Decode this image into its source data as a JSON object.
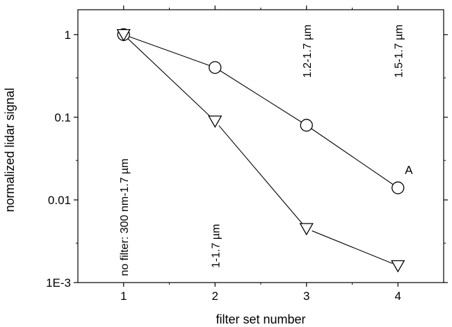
{
  "chart_data": {
    "type": "line",
    "xlabel": "filter set number",
    "ylabel": "normalized lidar signal",
    "yscale": "log",
    "xlim": [
      0.5,
      4.5
    ],
    "ylim": [
      0.001,
      2
    ],
    "x_ticks": [
      1,
      2,
      3,
      4
    ],
    "x_tick_labels": [
      "1",
      "2",
      "3",
      "4"
    ],
    "y_ticks": [
      1,
      0.1,
      0.01,
      0.001
    ],
    "y_tick_labels": [
      "1",
      "0.1",
      "0.01",
      "1E-3"
    ],
    "grid": false,
    "series": [
      {
        "marker": "circle",
        "color": "#000000",
        "x": [
          1,
          2,
          3,
          4
        ],
        "y": [
          1,
          0.4,
          0.08,
          0.014
        ],
        "point_label": "A"
      },
      {
        "marker": "triangle-down",
        "color": "#000000",
        "x": [
          1,
          2,
          3,
          4
        ],
        "y": [
          1,
          0.09,
          0.0045,
          0.0016
        ]
      }
    ],
    "annotations": [
      {
        "text": "no filter: 300 nm-1.7 µm",
        "x": 1,
        "y": 0.0012,
        "orientation": "vertical"
      },
      {
        "text": "1-1.7 µm",
        "x": 2,
        "y": 0.0015,
        "orientation": "vertical"
      },
      {
        "text": "1.2-1.7 µm",
        "x": 3,
        "y": 0.3,
        "orientation": "vertical"
      },
      {
        "text": "1.5-1.7 µm",
        "x": 4,
        "y": 0.3,
        "orientation": "vertical"
      }
    ]
  }
}
